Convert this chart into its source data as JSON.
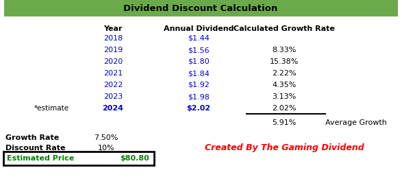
{
  "title": "Dividend Discount Calculation",
  "title_bg_color": "#6aaa4b",
  "title_text_color": "#000000",
  "header_year": "Year",
  "header_dividend": "Annual Dividend",
  "header_growth": "Calculated Growth Rate",
  "years": [
    "2018",
    "2019",
    "2020",
    "2021",
    "2022",
    "2023",
    "2024"
  ],
  "dividends": [
    "$1.44",
    "$1.56",
    "$1.80",
    "$1.84",
    "$1.92",
    "$1.98",
    "$2.02"
  ],
  "growth_rates": [
    "",
    "8.33%",
    "15.38%",
    "2.22%",
    "4.35%",
    "3.13%",
    "2.02%"
  ],
  "estimate_label": "*estimate",
  "avg_growth_value": "5.91%",
  "avg_growth_label": "Average Growth",
  "growth_rate_label": "Growth Rate",
  "growth_rate_value": "7.50%",
  "discount_rate_label": "Discount Rate",
  "discount_rate_value": "10%",
  "estimated_price_label": "Estimated Price",
  "estimated_price_value": "$80.80",
  "watermark": "Created By The Gaming Dividend",
  "watermark_color": "#ff0000",
  "year_color": "#0000cc",
  "dividend_color": "#0000cc",
  "growth_color": "#000000",
  "header_color": "#000000",
  "estimate_color": "#000000",
  "box_edge_color": "#000000",
  "box_text_color": "#008000"
}
